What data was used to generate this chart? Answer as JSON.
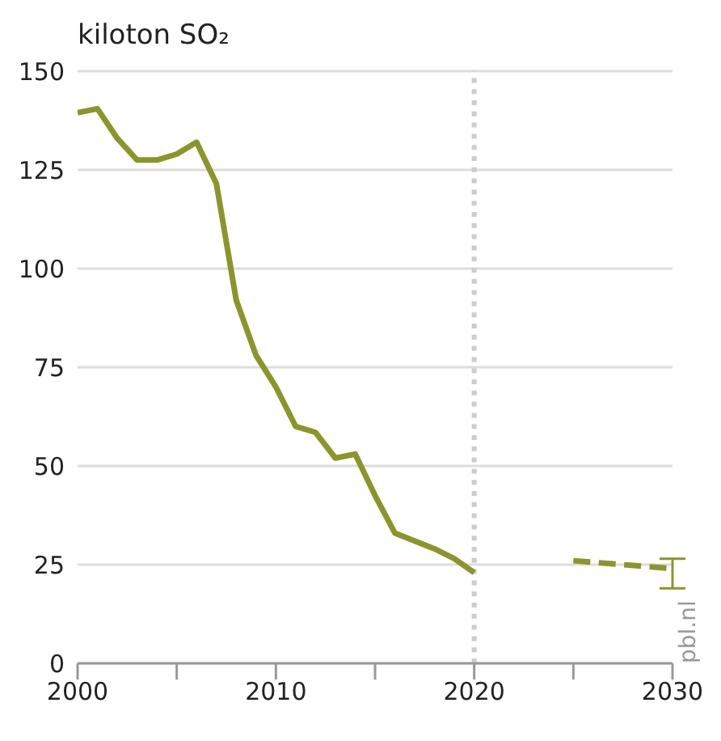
{
  "chart_data": {
    "type": "line",
    "ylabel": "kiloton SO₂",
    "xlim": [
      2000,
      2030
    ],
    "xticks": [
      2000,
      {
        "value": 2005,
        "label": null
      },
      2010,
      {
        "value": 2015,
        "label": null
      },
      2020,
      {
        "value": 2025,
        "label": null
      },
      2030
    ],
    "ylim": [
      0,
      150
    ],
    "yticks": [
      0,
      25,
      50,
      75,
      100,
      125,
      150
    ],
    "grid": "y",
    "series": [
      {
        "color": "#8a962a",
        "line_style": "solid",
        "x": [
          2000,
          2001,
          2002,
          2003,
          2004,
          2005,
          2006,
          2007,
          2008,
          2009,
          2010,
          2011,
          2012,
          2013,
          2014,
          2015,
          2016,
          2017,
          2018,
          2019,
          2020
        ],
        "values": [
          139.5,
          140.5,
          133,
          127.5,
          127.5,
          129,
          132,
          121.5,
          92,
          78,
          70,
          60,
          58.5,
          52,
          53,
          42.5,
          33,
          31,
          29,
          26.5,
          23
        ]
      },
      {
        "color": "#8a962a",
        "line_style": "dashed",
        "x": [
          2025,
          2030
        ],
        "values": [
          26,
          24
        ],
        "errors": [
          null,
          [
            19,
            26.5
          ]
        ]
      }
    ],
    "ref_lines": [
      {
        "axis": "x",
        "value": 2020,
        "color": "#cccccc",
        "line_style": "dotted"
      }
    ],
    "annotations": [
      "pbl.nl"
    ]
  }
}
